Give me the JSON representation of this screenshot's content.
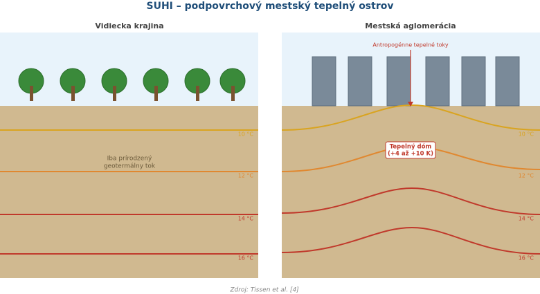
{
  "title": "SUHI – podpovrchový mestský tepelný ostrov",
  "panels": [
    {
      "title": "Vidiecka krajina",
      "note": [
        "Iba prírodzený",
        "geotermálny tok"
      ],
      "isotherms": [
        "10 °C",
        "12 °C",
        "14 °C",
        "16 °C"
      ]
    },
    {
      "title": "Mestská aglomerácia",
      "arrow_label": "Antropogénne tepelné toky",
      "dome_label": [
        "Tepelný dóm",
        "(+4 až +10 K)"
      ],
      "isotherms": [
        "10 °C",
        "12 °C",
        "14 °C",
        "16 °C"
      ]
    }
  ],
  "source": "Zdroj: Tissen et al. [4]"
}
